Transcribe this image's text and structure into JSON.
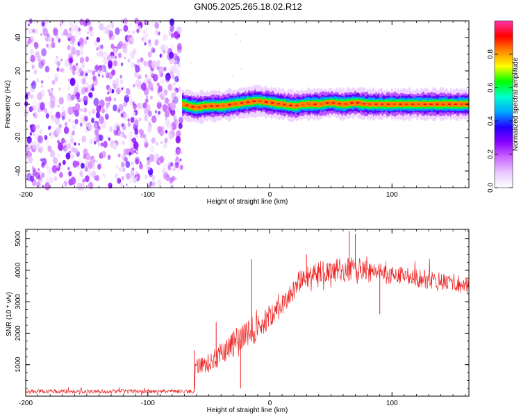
{
  "figure": {
    "title": "GN05.2025.265.18.02.R12"
  },
  "chart_data": [
    {
      "type": "heatmap",
      "title": "GN05.2025.265.18.02.R12",
      "xlabel": "Height of straight line (km)",
      "ylabel": "Frequency (Hz)",
      "xlim": [
        -200,
        163
      ],
      "ylim": [
        -50,
        50
      ],
      "x_ticks": [
        -200,
        -100,
        0,
        100
      ],
      "x_tick_labels": [
        "-200",
        "-100",
        "0",
        "100"
      ],
      "y_ticks": [
        -40,
        -20,
        0,
        20,
        40
      ],
      "y_tick_labels": [
        "-40",
        "-20",
        "0",
        "20",
        "40"
      ],
      "noise_region_x": [
        -200,
        -72
      ],
      "signal_track": {
        "x": [
          -72,
          -60,
          -50,
          -40,
          -30,
          -20,
          -10,
          0,
          10,
          20,
          30,
          40,
          50,
          60,
          70,
          80,
          90,
          100,
          110,
          120,
          130,
          140,
          150,
          163
        ],
        "frequency": [
          0,
          -2,
          -1,
          -1,
          0,
          1,
          2,
          1,
          0,
          -1,
          0,
          0,
          1,
          0,
          1,
          0,
          0,
          0,
          0,
          0,
          0,
          0,
          0,
          0
        ]
      },
      "colorbar": {
        "label": "Normalized spectral amplitude",
        "range": [
          0,
          1
        ],
        "ticks": [
          0.0,
          0.2,
          0.4,
          0.6,
          0.8
        ],
        "tick_labels": [
          "0.0",
          "0.2",
          "0.4",
          "0.6",
          "0.8"
        ],
        "colors": [
          "#ffffff",
          "#e8c8ff",
          "#cc66ff",
          "#8800ff",
          "#2200ff",
          "#00aaff",
          "#00ffcc",
          "#00ff00",
          "#ffff00",
          "#ff8800",
          "#ff0000",
          "#ff33aa"
        ]
      }
    },
    {
      "type": "line",
      "xlabel": "Height of straight line (km)",
      "ylabel": "SNR (10 * v/v)",
      "xlim": [
        -200,
        163
      ],
      "ylim": [
        0,
        5300
      ],
      "x_ticks": [
        -200,
        -100,
        0,
        100
      ],
      "x_tick_labels": [
        "-200",
        "-100",
        "0",
        "100"
      ],
      "y_ticks": [
        1000,
        2000,
        3000,
        4000,
        5000
      ],
      "y_tick_labels": [
        "1000",
        "2000",
        "3000",
        "4000",
        "5000"
      ],
      "line_color": "#ee2222",
      "envelope": {
        "x": [
          -200,
          -62,
          -61,
          -50,
          -40,
          -30,
          -20,
          -10,
          0,
          10,
          20,
          25,
          40,
          60,
          70,
          80,
          100,
          120,
          140,
          163
        ],
        "mean": [
          150,
          150,
          900,
          1050,
          1350,
          1650,
          1900,
          2200,
          2550,
          2900,
          3400,
          3700,
          3950,
          4000,
          4050,
          3950,
          3850,
          3750,
          3650,
          3550
        ],
        "noise": [
          60,
          60,
          250,
          300,
          380,
          450,
          500,
          450,
          400,
          350,
          350,
          350,
          350,
          400,
          400,
          350,
          300,
          300,
          300,
          300
        ]
      },
      "spikes": [
        {
          "x": -62,
          "y": 1450
        },
        {
          "x": -44,
          "y": 2350
        },
        {
          "x": -35,
          "y": 1650
        },
        {
          "x": -24,
          "y": 250
        },
        {
          "x": -15,
          "y": 4350
        },
        {
          "x": 30,
          "y": 4500
        },
        {
          "x": 65,
          "y": 5250
        },
        {
          "x": 70,
          "y": 5150
        },
        {
          "x": 90,
          "y": 2600
        }
      ]
    }
  ]
}
